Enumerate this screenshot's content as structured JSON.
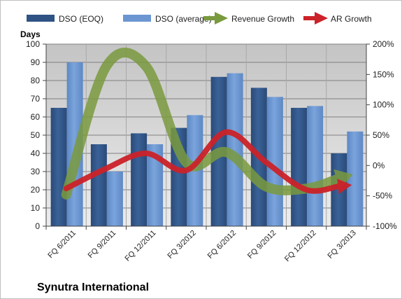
{
  "chart_data": {
    "type": "bar",
    "title": "Synutra International",
    "ylabel": "Days",
    "ylim": [
      0,
      100
    ],
    "yticks": [
      0,
      10,
      20,
      30,
      40,
      50,
      60,
      70,
      80,
      90,
      100
    ],
    "y2lim": [
      -100,
      200
    ],
    "y2ticks": [
      -100,
      -50,
      0,
      50,
      100,
      150,
      200
    ],
    "y2tick_labels": [
      "-100%",
      "-50%",
      "0%",
      "50%",
      "100%",
      "150%",
      "200%"
    ],
    "categories": [
      "FQ 6/2011",
      "FQ 9/2011",
      "FQ 12/2011",
      "FQ 3/2012",
      "FQ 6/2012",
      "FQ 9/2012",
      "FQ 12/2012",
      "FQ 3/2013"
    ],
    "grid": true,
    "legend_position": "top",
    "series": [
      {
        "name": "DSO (EOQ)",
        "kind": "bar",
        "axis": "left",
        "color": "#2f5384",
        "values": [
          65,
          45,
          51,
          54,
          82,
          76,
          65,
          40
        ]
      },
      {
        "name": "DSO (average)",
        "kind": "bar",
        "axis": "left",
        "color": "#6b96d2",
        "values": [
          90,
          30,
          45,
          61,
          84,
          71,
          66,
          52
        ]
      },
      {
        "name": "Revenue Growth",
        "kind": "line",
        "axis": "right",
        "color": "#7a9a3e",
        "values": [
          -48,
          163,
          163,
          5,
          22,
          -35,
          -38,
          -18
        ]
      },
      {
        "name": "AR Growth",
        "kind": "line",
        "axis": "right",
        "color": "#cc2229",
        "values": [
          -38,
          -5,
          20,
          -8,
          55,
          5,
          -40,
          -33
        ]
      }
    ]
  }
}
